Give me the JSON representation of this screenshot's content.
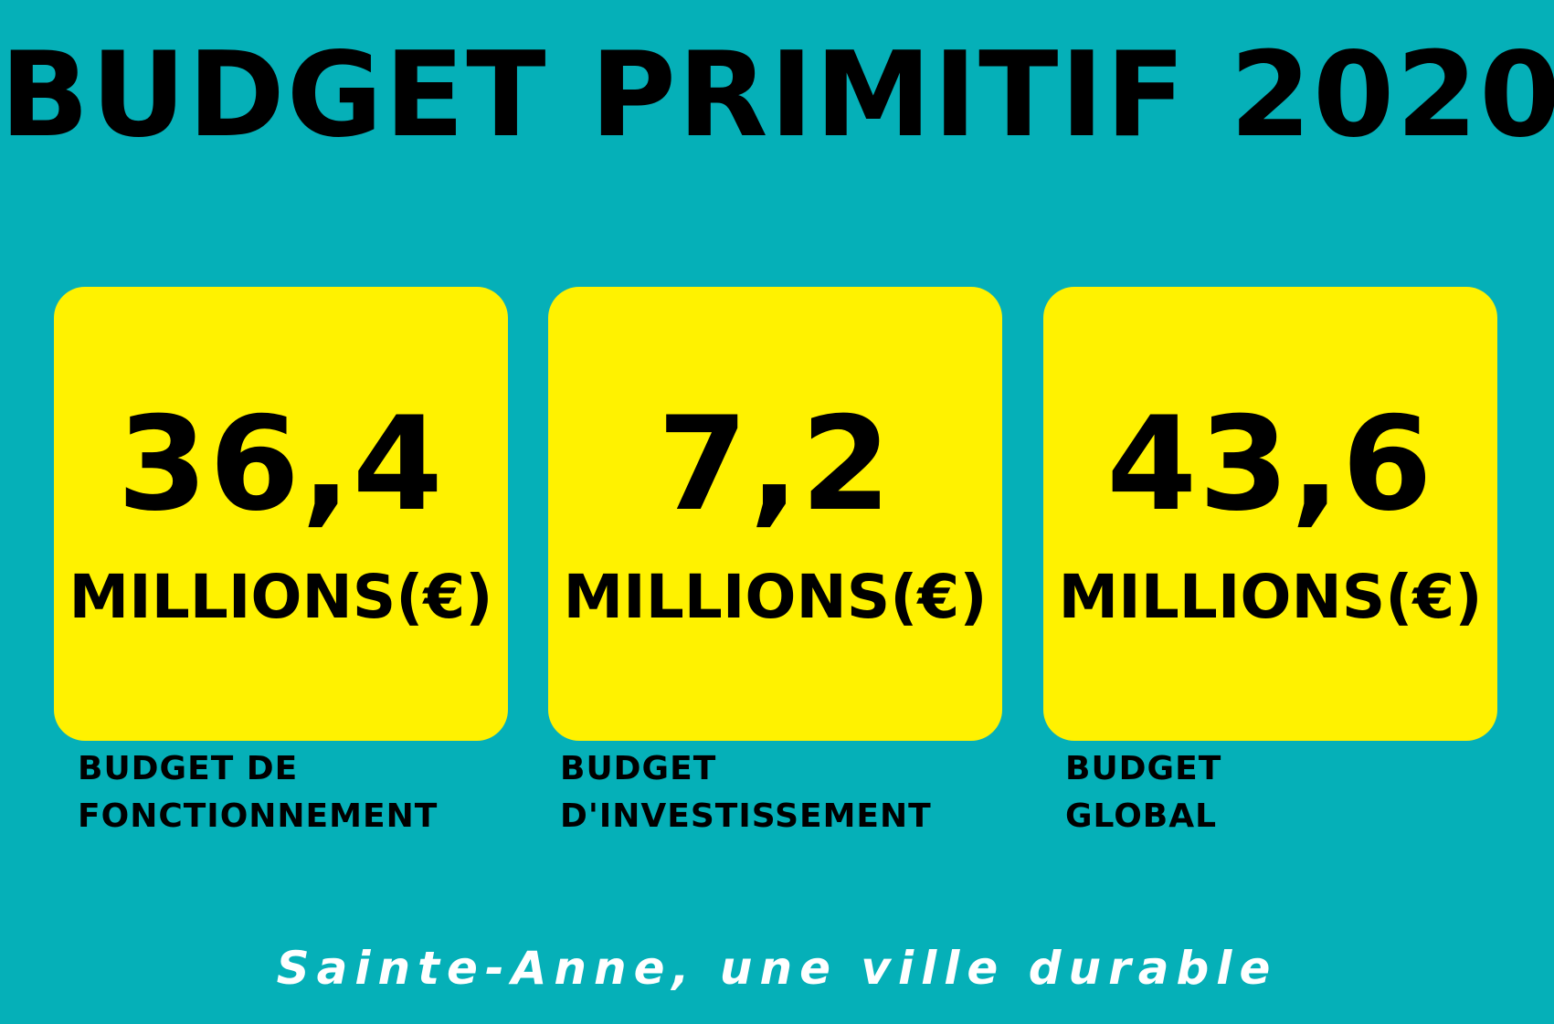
{
  "title": "BUDGET PRIMITIF 2020",
  "cards": [
    {
      "value": "36,4",
      "unit": "MILLIONS(€)",
      "label_line1": "BUDGET DE",
      "label_line2": "FONCTIONNEMENT"
    },
    {
      "value": "7,2",
      "unit": "MILLIONS(€)",
      "label_line1": "BUDGET",
      "label_line2": "D'INVESTISSEMENT"
    },
    {
      "value": "43,6",
      "unit": "MILLIONS(€)",
      "label_line1": "BUDGET",
      "label_line2": "GLOBAL"
    }
  ],
  "tagline": "Sainte-Anne, une ville durable",
  "colors": {
    "background": "#05b0b8",
    "card": "#fff200",
    "text": "#000000",
    "tagline": "#ffffff"
  }
}
